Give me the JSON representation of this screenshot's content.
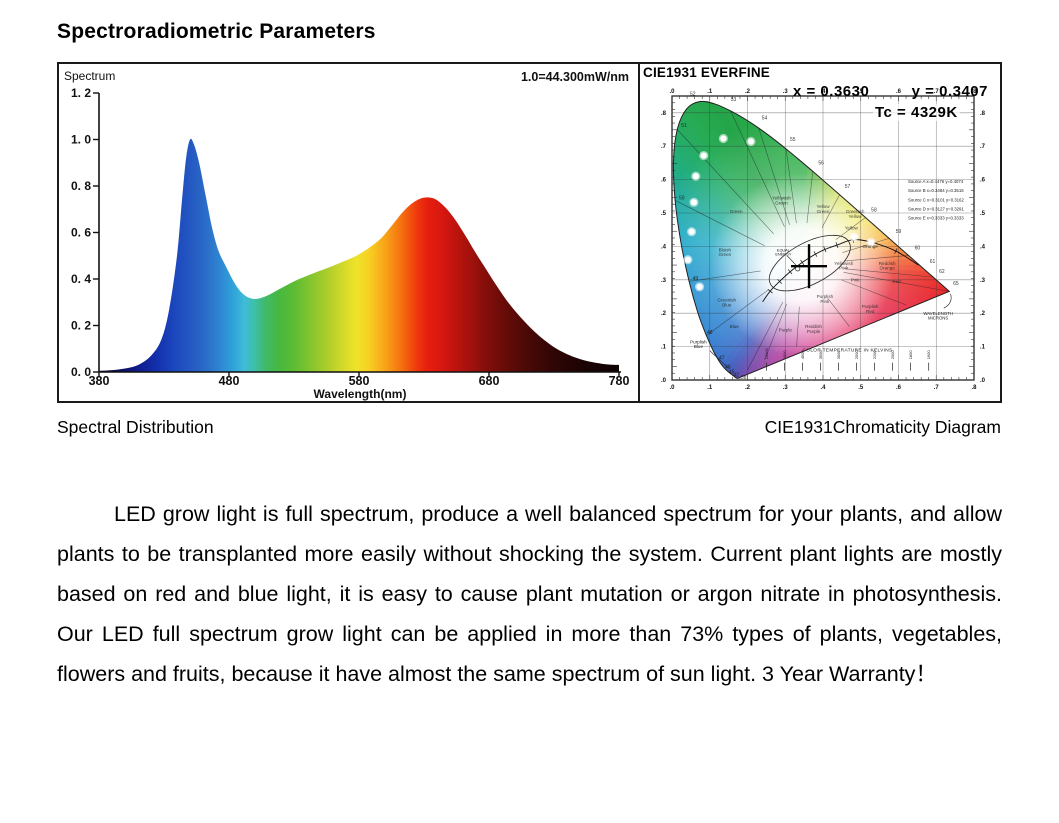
{
  "page": {
    "title": "Spectroradiometric Parameters"
  },
  "captions": {
    "left": "Spectral Distribution",
    "right": "CIE1931Chromaticity Diagram"
  },
  "paragraph": "LED grow light is full spectrum, produce a well balanced spectrum for your plants, and allow plants to be transplanted more easily without shocking the system. Current plant lights are mostly based on red and blue light, it is easy to cause plant mutation or argon nitrate in photosynthesis. Our LED full spectrum grow light can be applied in more than 73% types of plants, vegetables, flowers and fruits, because it have almost the same spectrum of sun light. 3 Year Warranty！",
  "chart_data": [
    {
      "type": "area",
      "title": "Spectral Distribution",
      "corner_label": "Spectrum",
      "scale_note": "1.0=44.300mW/nm",
      "xlabel": "Wavelength(nm)",
      "xlim": [
        380,
        780
      ],
      "ylim": [
        0,
        1.2
      ],
      "grid": false,
      "x_ticks": [
        {
          "v": 380,
          "label": "380"
        },
        {
          "v": 480,
          "label": "480"
        },
        {
          "v": 580,
          "label": "580"
        },
        {
          "v": 680,
          "label": "680"
        },
        {
          "v": 780,
          "label": "780"
        }
      ],
      "y_ticks": [
        {
          "v": 0.0,
          "label": "0. 0"
        },
        {
          "v": 0.2,
          "label": "0. 2"
        },
        {
          "v": 0.4,
          "label": "0. 4"
        },
        {
          "v": 0.6,
          "label": "0. 6"
        },
        {
          "v": 0.8,
          "label": "0. 8"
        },
        {
          "v": 1.0,
          "label": "1. 0"
        },
        {
          "v": 1.2,
          "label": "1. 2"
        }
      ],
      "x": [
        380,
        390,
        400,
        410,
        420,
        428,
        434,
        440,
        444,
        447,
        450,
        453,
        457,
        462,
        467,
        472,
        478,
        484,
        490,
        496,
        502,
        510,
        520,
        532,
        545,
        557,
        568,
        578,
        588,
        597,
        606,
        614,
        622,
        630,
        638,
        646,
        654,
        662,
        670,
        678,
        686,
        694,
        702,
        712,
        722,
        732,
        742,
        752,
        762,
        772,
        780
      ],
      "values": [
        0.005,
        0.008,
        0.015,
        0.03,
        0.07,
        0.14,
        0.27,
        0.5,
        0.75,
        0.92,
        1.0,
        0.98,
        0.9,
        0.76,
        0.62,
        0.52,
        0.45,
        0.385,
        0.34,
        0.318,
        0.315,
        0.33,
        0.36,
        0.395,
        0.425,
        0.45,
        0.475,
        0.5,
        0.535,
        0.575,
        0.635,
        0.69,
        0.73,
        0.75,
        0.745,
        0.71,
        0.655,
        0.585,
        0.51,
        0.44,
        0.37,
        0.305,
        0.25,
        0.19,
        0.14,
        0.1,
        0.072,
        0.052,
        0.04,
        0.032,
        0.03
      ],
      "gradient": [
        {
          "wl": 380,
          "c": "#07072a"
        },
        {
          "wl": 395,
          "c": "#0a0e55"
        },
        {
          "wl": 410,
          "c": "#0e1c8c"
        },
        {
          "wl": 425,
          "c": "#1431af"
        },
        {
          "wl": 438,
          "c": "#1c47bd"
        },
        {
          "wl": 450,
          "c": "#2458c2"
        },
        {
          "wl": 462,
          "c": "#2a6cc8"
        },
        {
          "wl": 473,
          "c": "#2f86d2"
        },
        {
          "wl": 483,
          "c": "#2fa3da"
        },
        {
          "wl": 492,
          "c": "#3fbcd8"
        },
        {
          "wl": 500,
          "c": "#3ebfa5"
        },
        {
          "wl": 508,
          "c": "#3fba6a"
        },
        {
          "wl": 518,
          "c": "#46b840"
        },
        {
          "wl": 530,
          "c": "#5cbc33"
        },
        {
          "wl": 543,
          "c": "#85c52e"
        },
        {
          "wl": 556,
          "c": "#adce2b"
        },
        {
          "wl": 568,
          "c": "#d4d929"
        },
        {
          "wl": 578,
          "c": "#eee32a"
        },
        {
          "wl": 588,
          "c": "#f7cf22"
        },
        {
          "wl": 597,
          "c": "#f8ae1b"
        },
        {
          "wl": 606,
          "c": "#f78c14"
        },
        {
          "wl": 615,
          "c": "#f4650f"
        },
        {
          "wl": 624,
          "c": "#ee3b0d"
        },
        {
          "wl": 632,
          "c": "#e7200e"
        },
        {
          "wl": 642,
          "c": "#da180f"
        },
        {
          "wl": 652,
          "c": "#c4140f"
        },
        {
          "wl": 663,
          "c": "#a8120d"
        },
        {
          "wl": 675,
          "c": "#8a0f0b"
        },
        {
          "wl": 688,
          "c": "#6f0c09"
        },
        {
          "wl": 702,
          "c": "#560a07"
        },
        {
          "wl": 718,
          "c": "#3e0806"
        },
        {
          "wl": 735,
          "c": "#2a0504"
        },
        {
          "wl": 755,
          "c": "#1a0303"
        },
        {
          "wl": 780,
          "c": "#0d0202"
        }
      ]
    },
    {
      "type": "chromaticity",
      "header": "CIE1931 EVERFINE",
      "reading": {
        "x_label": "x = 0.3630",
        "y_label": "y = 0.3407",
        "tc_label": "Tc = 4329K",
        "x": 0.363,
        "y": 0.3407,
        "tc_kelvin": 4329
      },
      "axis": {
        "xlim": [
          0,
          0.8
        ],
        "ylim": [
          0,
          0.85
        ],
        "tick_step": 0.1,
        "x_tick_labels": [
          ".0",
          ".1",
          ".2",
          ".3",
          ".4",
          ".5",
          ".6",
          ".7",
          ".8"
        ],
        "y_tick_labels": [
          ".0",
          ".1",
          ".2",
          ".3",
          ".4",
          ".5",
          ".6",
          ".7",
          ".8"
        ]
      },
      "locus": [
        [
          0.1741,
          0.005
        ],
        [
          0.1714,
          0.0051
        ],
        [
          0.1689,
          0.0069
        ],
        [
          0.1644,
          0.0109
        ],
        [
          0.1566,
          0.0177
        ],
        [
          0.144,
          0.0297
        ],
        [
          0.1355,
          0.0399
        ],
        [
          0.1241,
          0.0578
        ],
        [
          0.1096,
          0.0868
        ],
        [
          0.0913,
          0.1327
        ],
        [
          0.0687,
          0.2007
        ],
        [
          0.0454,
          0.295
        ],
        [
          0.0235,
          0.4127
        ],
        [
          0.0082,
          0.5384
        ],
        [
          0.0039,
          0.6548
        ],
        [
          0.0139,
          0.7502
        ],
        [
          0.0389,
          0.812
        ],
        [
          0.0743,
          0.8338
        ],
        [
          0.1142,
          0.8262
        ],
        [
          0.1547,
          0.8059
        ],
        [
          0.1929,
          0.7816
        ],
        [
          0.2296,
          0.7543
        ],
        [
          0.2658,
          0.7243
        ],
        [
          0.3016,
          0.6923
        ],
        [
          0.3373,
          0.6589
        ],
        [
          0.3731,
          0.6245
        ],
        [
          0.4087,
          0.5896
        ],
        [
          0.4441,
          0.5547
        ],
        [
          0.4788,
          0.5202
        ],
        [
          0.5125,
          0.4866
        ],
        [
          0.5448,
          0.4544
        ],
        [
          0.5752,
          0.4242
        ],
        [
          0.6029,
          0.3965
        ],
        [
          0.627,
          0.3725
        ],
        [
          0.6482,
          0.3514
        ],
        [
          0.6658,
          0.334
        ],
        [
          0.6801,
          0.3197
        ],
        [
          0.6915,
          0.3083
        ],
        [
          0.7006,
          0.2993
        ],
        [
          0.7079,
          0.292
        ],
        [
          0.714,
          0.2859
        ],
        [
          0.719,
          0.2809
        ],
        [
          0.723,
          0.277
        ],
        [
          0.726,
          0.274
        ],
        [
          0.7283,
          0.2717
        ],
        [
          0.73,
          0.27
        ],
        [
          0.732,
          0.268
        ],
        [
          0.7334,
          0.2666
        ],
        [
          0.7347,
          0.2653
        ]
      ],
      "hue_center": [
        0.345,
        0.345
      ],
      "hue_stops": [
        {
          "deg": 0,
          "color": "#2fae47"
        },
        {
          "deg": 10,
          "color": "#5fb83e"
        },
        {
          "deg": 26,
          "color": "#c4d32e"
        },
        {
          "deg": 50,
          "color": "#eee32b"
        },
        {
          "deg": 71,
          "color": "#f6a91d"
        },
        {
          "deg": 85,
          "color": "#f26522"
        },
        {
          "deg": 96,
          "color": "#e92a24"
        },
        {
          "deg": 115,
          "color": "#e51a38"
        },
        {
          "deg": 153,
          "color": "#df1f5e"
        },
        {
          "deg": 179,
          "color": "#cb2385"
        },
        {
          "deg": 197,
          "color": "#a02d98"
        },
        {
          "deg": 207,
          "color": "#6a3aa4"
        },
        {
          "deg": 213,
          "color": "#3a4bb4"
        },
        {
          "deg": 219,
          "color": "#2b62c4"
        },
        {
          "deg": 231,
          "color": "#2277cd"
        },
        {
          "deg": 261,
          "color": "#1d92cd"
        },
        {
          "deg": 282,
          "color": "#1fa9c9"
        },
        {
          "deg": 300,
          "color": "#20ac9a"
        },
        {
          "deg": 312,
          "color": "#23ad72"
        },
        {
          "deg": 322,
          "color": "#27ab55"
        },
        {
          "deg": 332,
          "color": "#25a549"
        },
        {
          "deg": 353,
          "color": "#2fae4a"
        },
        {
          "deg": 360,
          "color": "#2fae47"
        }
      ],
      "led_points": [
        [
          0.136,
          0.723
        ],
        [
          0.209,
          0.714
        ],
        [
          0.084,
          0.672
        ],
        [
          0.063,
          0.61
        ],
        [
          0.058,
          0.532
        ],
        [
          0.052,
          0.444
        ],
        [
          0.042,
          0.36
        ],
        [
          0.073,
          0.279
        ],
        [
          0.482,
          0.428
        ],
        [
          0.527,
          0.412
        ]
      ],
      "planckian": [
        [
          0.653,
          0.344
        ],
        [
          0.593,
          0.386
        ],
        [
          0.527,
          0.413
        ],
        [
          0.48,
          0.42
        ],
        [
          0.437,
          0.404
        ],
        [
          0.405,
          0.391
        ],
        [
          0.38,
          0.377
        ],
        [
          0.345,
          0.352
        ],
        [
          0.313,
          0.324
        ],
        [
          0.285,
          0.295
        ],
        [
          0.26,
          0.266
        ],
        [
          0.24,
          0.234
        ]
      ],
      "boundary_targets": [
        [
          0.155,
          0.806
        ],
        [
          0.23,
          0.754
        ],
        [
          0.302,
          0.692
        ],
        [
          0.373,
          0.625
        ],
        [
          0.444,
          0.555
        ],
        [
          0.513,
          0.487
        ],
        [
          0.575,
          0.424
        ],
        [
          0.627,
          0.373
        ],
        [
          0.692,
          0.308
        ],
        [
          0.735,
          0.265
        ],
        [
          0.62,
          0.225
        ],
        [
          0.47,
          0.16
        ],
        [
          0.33,
          0.1
        ],
        [
          0.245,
          0.06
        ],
        [
          0.2,
          0.03
        ],
        [
          0.091,
          0.133
        ],
        [
          0.045,
          0.295
        ],
        [
          0.008,
          0.538
        ],
        [
          0.014,
          0.75
        ]
      ],
      "white_ellipse": {
        "cx": 0.365,
        "cy": 0.35,
        "rx": 0.118,
        "ry": 0.062,
        "rot": -28
      },
      "region_labels": [
        {
          "t": "Green",
          "x": 0.17,
          "y": 0.5
        },
        {
          "t": "Yellowish\nGreen",
          "x": 0.29,
          "y": 0.54
        },
        {
          "t": "Yellow\nGreen",
          "x": 0.4,
          "y": 0.515
        },
        {
          "t": "Greenish\nYellow",
          "x": 0.485,
          "y": 0.5
        },
        {
          "t": "Yellow",
          "x": 0.475,
          "y": 0.45
        },
        {
          "t": "Orange",
          "x": 0.525,
          "y": 0.395
        },
        {
          "t": "Reddish\nOrange",
          "x": 0.57,
          "y": 0.345
        },
        {
          "t": "Red",
          "x": 0.595,
          "y": 0.29
        },
        {
          "t": "Purplish\nRed",
          "x": 0.525,
          "y": 0.215
        },
        {
          "t": "Pink",
          "x": 0.485,
          "y": 0.295
        },
        {
          "t": "Yellowish\nPink",
          "x": 0.455,
          "y": 0.345
        },
        {
          "t": "Purplish\nPink",
          "x": 0.405,
          "y": 0.245
        },
        {
          "t": "Reddish\nPurple",
          "x": 0.375,
          "y": 0.155
        },
        {
          "t": "Purple",
          "x": 0.3,
          "y": 0.145
        },
        {
          "t": "Blue",
          "x": 0.165,
          "y": 0.155
        },
        {
          "t": "Greenish\nBlue",
          "x": 0.145,
          "y": 0.235
        },
        {
          "t": "Bluish\nGreen",
          "x": 0.14,
          "y": 0.385
        }
      ],
      "locus_labels": [
        {
          "t": "52",
          "x": 0.055,
          "y": 0.852
        },
        {
          "t": "53",
          "x": 0.163,
          "y": 0.835
        },
        {
          "t": "54",
          "x": 0.245,
          "y": 0.78
        },
        {
          "t": "55",
          "x": 0.32,
          "y": 0.715
        },
        {
          "t": "56",
          "x": 0.395,
          "y": 0.645
        },
        {
          "t": "57",
          "x": 0.465,
          "y": 0.575
        },
        {
          "t": "58",
          "x": 0.535,
          "y": 0.505
        },
        {
          "t": "59",
          "x": 0.6,
          "y": 0.44
        },
        {
          "t": "60",
          "x": 0.65,
          "y": 0.39
        },
        {
          "t": "61",
          "x": 0.69,
          "y": 0.35
        },
        {
          "t": "62",
          "x": 0.715,
          "y": 0.32
        },
        {
          "t": "65",
          "x": 0.752,
          "y": 0.285
        },
        {
          "t": "51",
          "x": 0.032,
          "y": 0.757
        },
        {
          "t": "50",
          "x": 0.026,
          "y": 0.54
        },
        {
          "t": "49",
          "x": 0.062,
          "y": 0.3
        },
        {
          "t": "48",
          "x": 0.1,
          "y": 0.138
        },
        {
          "t": "47",
          "x": 0.132,
          "y": 0.062
        },
        {
          "t": "46",
          "x": 0.148,
          "y": 0.035
        },
        {
          "t": "45",
          "x": 0.158,
          "y": 0.02
        },
        {
          "t": "42",
          "x": 0.17,
          "y": 0.01
        },
        {
          "t": "38",
          "x": 0.19,
          "y": 0.003
        }
      ],
      "annotations": {
        "equal_energy": "EQUAL\nENERGY",
        "color_temp": "COLOR TEMPERATURE IN KELVINS",
        "wavelength": "WAVELENGTH\nMICRONS",
        "purplish_blue": "Purplish\nBlue"
      },
      "kelvin_ticks": [
        "10000",
        "6000",
        "4500",
        "3500",
        "3000",
        "2500",
        "2200",
        "2000",
        "1800",
        "1600"
      ],
      "sources": [
        "Source A  x=0.4476 y=0.4074",
        "Source B  x=0.3484 y=0.3516",
        "Source C  x=0.3101 y=0.3162",
        "Source D  x=0.3127 y=0.3291",
        "Source E  x=0.3333 y=0.3333"
      ]
    }
  ]
}
